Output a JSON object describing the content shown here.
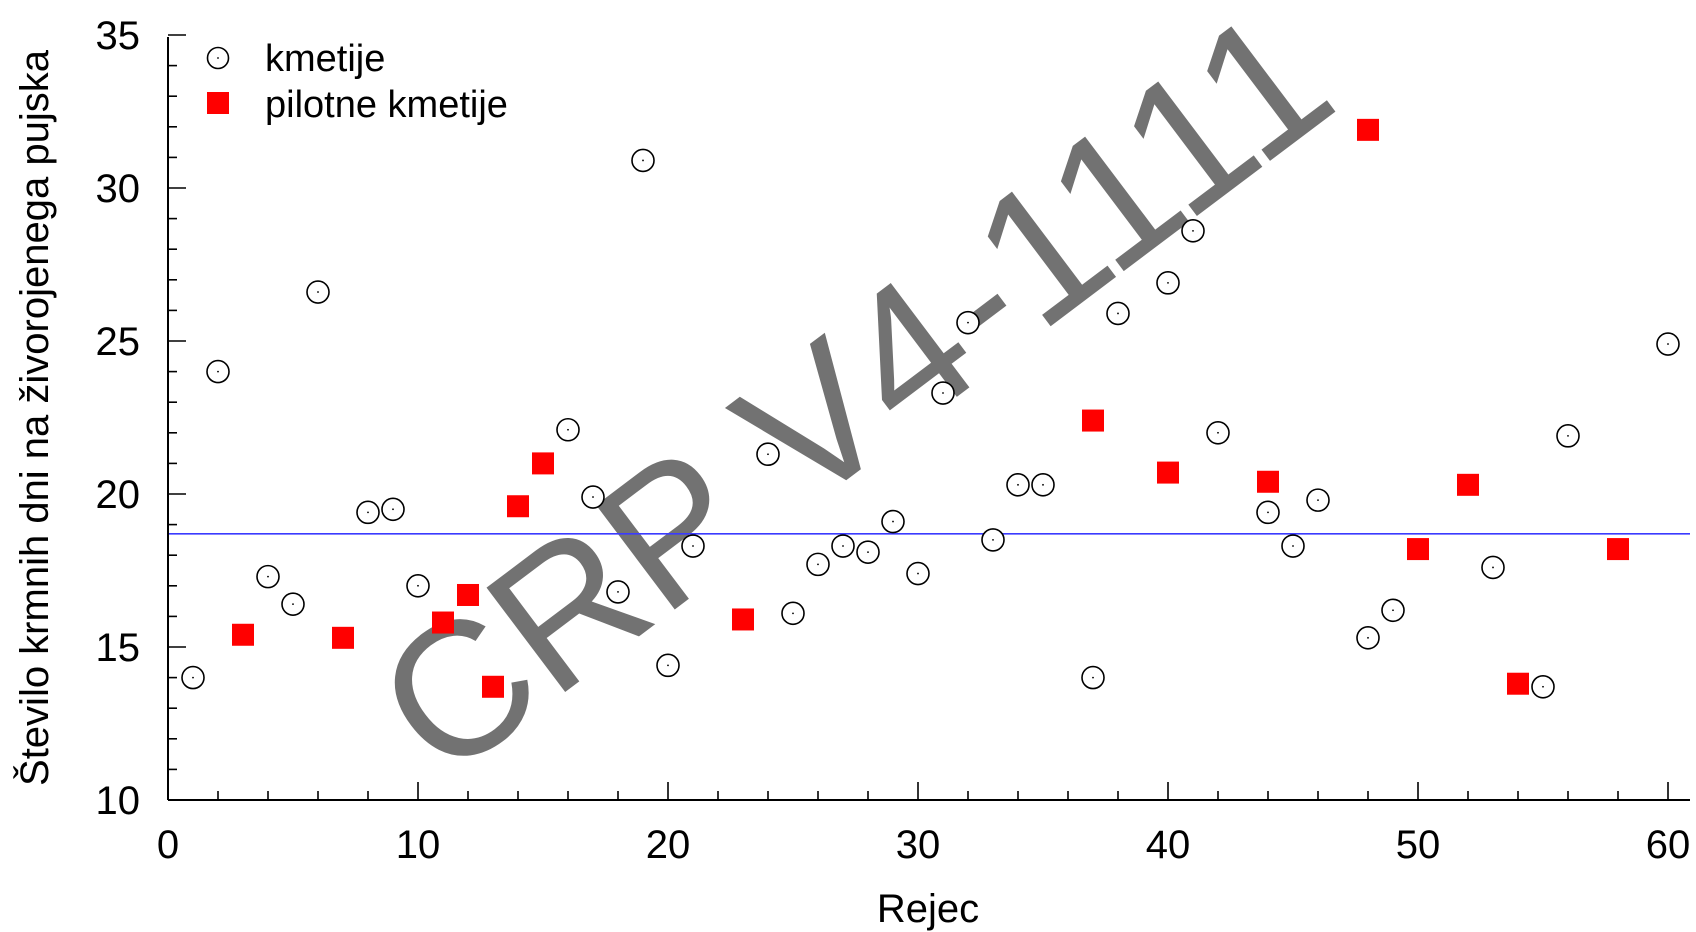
{
  "chart_data": {
    "type": "scatter",
    "xlabel": "Rejec",
    "ylabel": "Število krmnih dni na živorojenega pujska",
    "xlim": [
      0,
      61
    ],
    "ylim": [
      10,
      35
    ],
    "xticks": [
      0,
      10,
      20,
      30,
      40,
      50,
      60
    ],
    "yticks": [
      10,
      15,
      20,
      25,
      30,
      35
    ],
    "x_tick_labels": [
      "0",
      "10",
      "20",
      "30",
      "40",
      "50",
      "60"
    ],
    "y_tick_labels": [
      "10",
      "15",
      "20",
      "25",
      "30",
      "35"
    ],
    "reference_line": {
      "y": 18.7,
      "color": "#3b3bff"
    },
    "legend_position": "top-left",
    "watermark": "CRP V4-1111",
    "series": [
      {
        "name": "kmetije",
        "marker": "open-circle",
        "color": "#000000",
        "points": [
          [
            1,
            14.0
          ],
          [
            2,
            24.0
          ],
          [
            4,
            17.3
          ],
          [
            5,
            16.4
          ],
          [
            6,
            26.6
          ],
          [
            8,
            19.4
          ],
          [
            9,
            19.5
          ],
          [
            10,
            17.0
          ],
          [
            16,
            22.1
          ],
          [
            17,
            19.9
          ],
          [
            18,
            16.8
          ],
          [
            19,
            30.9
          ],
          [
            20,
            14.4
          ],
          [
            21,
            18.3
          ],
          [
            24,
            21.3
          ],
          [
            25,
            16.1
          ],
          [
            26,
            17.7
          ],
          [
            27,
            18.3
          ],
          [
            28,
            18.1
          ],
          [
            29,
            19.1
          ],
          [
            30,
            17.4
          ],
          [
            31,
            23.3
          ],
          [
            32,
            25.6
          ],
          [
            33,
            18.5
          ],
          [
            34,
            20.3
          ],
          [
            35,
            20.3
          ],
          [
            37,
            14.0
          ],
          [
            38,
            25.9
          ],
          [
            40,
            26.9
          ],
          [
            41,
            28.6
          ],
          [
            42,
            22.0
          ],
          [
            44,
            19.4
          ],
          [
            45,
            18.3
          ],
          [
            46,
            19.8
          ],
          [
            48,
            15.3
          ],
          [
            49,
            16.2
          ],
          [
            53,
            17.6
          ],
          [
            55,
            13.7
          ],
          [
            56,
            21.9
          ],
          [
            60,
            24.9
          ]
        ]
      },
      {
        "name": "pilotne kmetije",
        "marker": "filled-square",
        "color": "#ff0000",
        "points": [
          [
            3,
            15.4
          ],
          [
            7,
            15.3
          ],
          [
            11,
            15.8
          ],
          [
            12,
            16.7
          ],
          [
            13,
            13.7
          ],
          [
            14,
            19.6
          ],
          [
            15,
            21.0
          ],
          [
            23,
            15.9
          ],
          [
            37,
            22.4
          ],
          [
            40,
            20.7
          ],
          [
            44,
            20.4
          ],
          [
            48,
            31.9
          ],
          [
            50,
            18.2
          ],
          [
            52,
            20.3
          ],
          [
            54,
            13.8
          ],
          [
            58,
            18.2
          ]
        ]
      }
    ]
  }
}
